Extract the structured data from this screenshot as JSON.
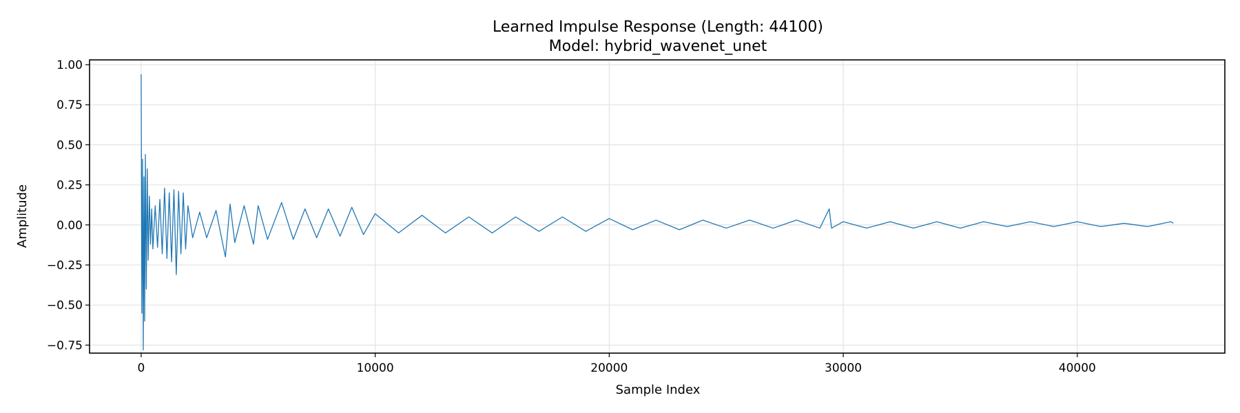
{
  "chart_data": {
    "type": "line",
    "title": "Learned Impulse Response (Length: 44100)",
    "subtitle": "Model: hybrid_wavenet_unet",
    "xlabel": "Sample Index",
    "ylabel": "Amplitude",
    "xlim": [
      -2205,
      46305
    ],
    "ylim": [
      -0.8,
      1.03
    ],
    "grid": true,
    "legend": "none",
    "x_ticks": [
      {
        "value": 0,
        "label": "0"
      },
      {
        "value": 10000,
        "label": "10000"
      },
      {
        "value": 20000,
        "label": "20000"
      },
      {
        "value": 30000,
        "label": "30000"
      },
      {
        "value": 40000,
        "label": "40000"
      }
    ],
    "y_ticks": [
      {
        "value": 1.0,
        "label": "1.00"
      },
      {
        "value": 0.75,
        "label": "0.75"
      },
      {
        "value": 0.5,
        "label": "0.50"
      },
      {
        "value": 0.25,
        "label": "0.25"
      },
      {
        "value": 0.0,
        "label": "0.00"
      },
      {
        "value": -0.25,
        "label": "−0.25"
      },
      {
        "value": -0.5,
        "label": "−0.50"
      },
      {
        "value": -0.75,
        "label": "−0.75"
      }
    ],
    "series": [
      {
        "color": "#1f77b4",
        "x": [
          0,
          30,
          60,
          90,
          120,
          150,
          180,
          220,
          260,
          300,
          350,
          400,
          450,
          500,
          600,
          700,
          800,
          900,
          1000,
          1100,
          1200,
          1300,
          1400,
          1500,
          1600,
          1700,
          1800,
          1900,
          2000,
          2200,
          2500,
          2800,
          3200,
          3600,
          3800,
          4000,
          4400,
          4800,
          5000,
          5400,
          6000,
          6500,
          7000,
          7500,
          8000,
          8500,
          9000,
          9500,
          10000,
          11000,
          12000,
          13000,
          14000,
          15000,
          16000,
          17000,
          18000,
          19000,
          20000,
          21000,
          22000,
          23000,
          24000,
          25000,
          26000,
          27000,
          28000,
          29000,
          29400,
          29500,
          30000,
          31000,
          32000,
          33000,
          34000,
          35000,
          36000,
          37000,
          38000,
          39000,
          40000,
          41000,
          42000,
          43000,
          44000,
          44100
        ],
        "y": [
          0.94,
          -0.55,
          0.41,
          -0.78,
          0.3,
          -0.6,
          0.44,
          -0.4,
          0.35,
          -0.22,
          0.18,
          -0.12,
          0.1,
          -0.15,
          0.12,
          -0.14,
          0.16,
          -0.18,
          0.23,
          -0.21,
          0.2,
          -0.23,
          0.22,
          -0.31,
          0.21,
          -0.18,
          0.2,
          -0.15,
          0.12,
          -0.08,
          0.08,
          -0.08,
          0.09,
          -0.2,
          0.13,
          -0.11,
          0.12,
          -0.12,
          0.12,
          -0.09,
          0.14,
          -0.09,
          0.1,
          -0.08,
          0.1,
          -0.07,
          0.11,
          -0.06,
          0.07,
          -0.05,
          0.06,
          -0.05,
          0.05,
          -0.05,
          0.05,
          -0.04,
          0.05,
          -0.04,
          0.04,
          -0.03,
          0.03,
          -0.03,
          0.03,
          -0.02,
          0.03,
          -0.02,
          0.03,
          -0.02,
          0.1,
          -0.02,
          0.02,
          -0.02,
          0.02,
          -0.02,
          0.02,
          -0.02,
          0.02,
          -0.01,
          0.02,
          -0.01,
          0.02,
          -0.01,
          0.01,
          -0.01,
          0.02,
          0.01
        ]
      }
    ]
  }
}
